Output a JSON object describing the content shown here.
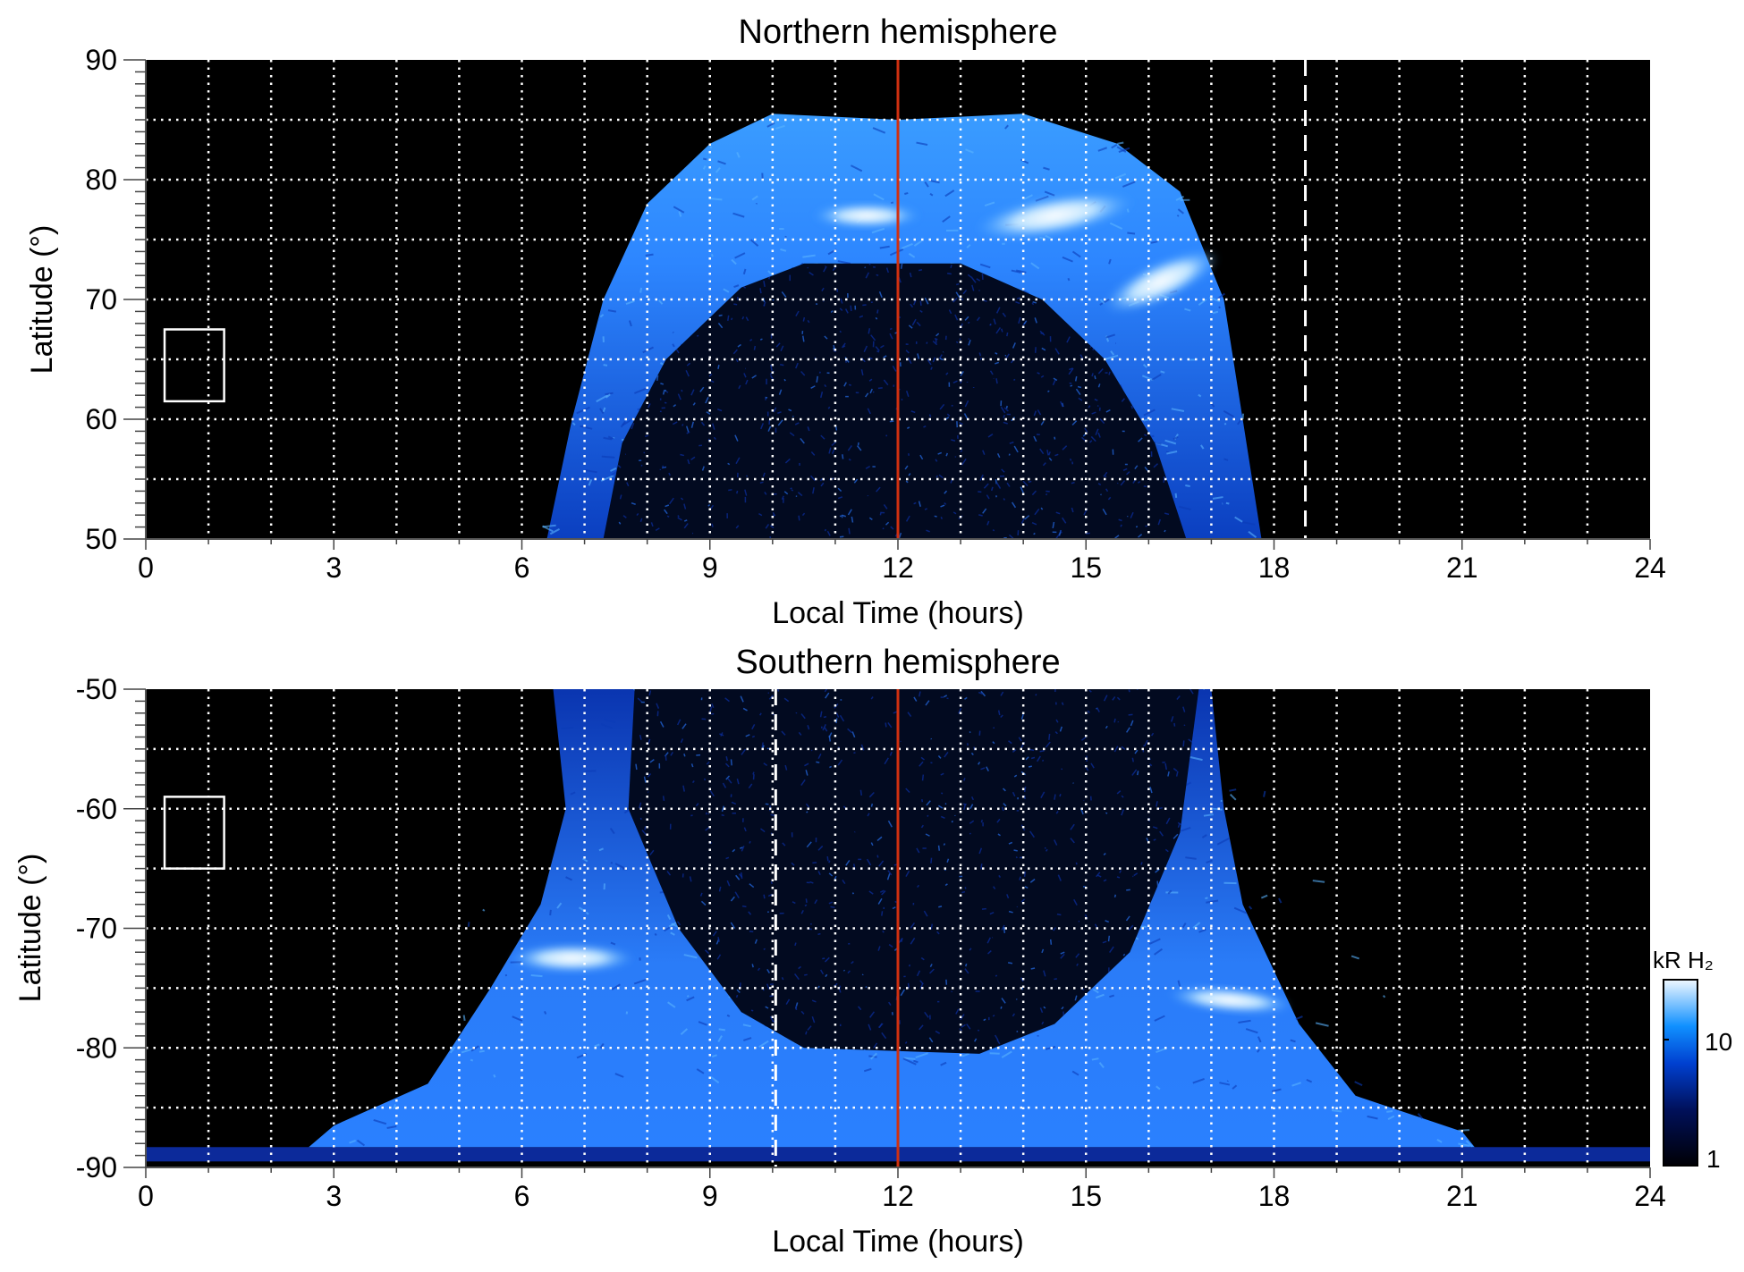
{
  "chart_data": [
    {
      "type": "heatmap",
      "title": "Northern hemisphere",
      "xlabel": "Local Time (hours)",
      "ylabel": "Latitude (°)",
      "xlim": [
        0,
        24
      ],
      "ylim": [
        50,
        90
      ],
      "xticks": [
        "0",
        "3",
        "6",
        "9",
        "12",
        "15",
        "18",
        "21",
        "24"
      ],
      "yticks": [
        "50",
        "60",
        "70",
        "80",
        "90"
      ],
      "grid": true,
      "background": "#000000",
      "vertical_lines": [
        {
          "x": 12,
          "color": "#d03010",
          "style": "solid"
        },
        {
          "x": 18.5,
          "color": "#ffffff",
          "style": "dashed"
        }
      ],
      "box": {
        "x": [
          0.3,
          1.25
        ],
        "y": [
          61.5,
          67.5
        ],
        "color": "#ffffff"
      }
    },
    {
      "type": "heatmap",
      "title": "Southern hemisphere",
      "xlabel": "Local Time (hours)",
      "ylabel": "Latitude (°)",
      "xlim": [
        0,
        24
      ],
      "ylim": [
        -90,
        -50
      ],
      "xticks": [
        "0",
        "3",
        "6",
        "9",
        "12",
        "15",
        "18",
        "21",
        "24"
      ],
      "yticks": [
        "-90",
        "-80",
        "-70",
        "-60",
        "-50"
      ],
      "grid": true,
      "background": "#000000",
      "vertical_lines": [
        {
          "x": 12,
          "color": "#d03010",
          "style": "solid"
        },
        {
          "x": 10.05,
          "color": "#ffffff",
          "style": "dashed"
        }
      ],
      "box": {
        "x": [
          0.3,
          1.25
        ],
        "y": [
          -65,
          -59
        ],
        "color": "#ffffff"
      },
      "colorbar": {
        "label": "kR H₂",
        "scale": "log",
        "range": [
          1,
          30
        ],
        "ticks": [
          "1",
          "10"
        ],
        "colors": [
          "#000005",
          "#00105a",
          "#0040d0",
          "#1090ff",
          "#f0f8ff"
        ]
      }
    }
  ]
}
